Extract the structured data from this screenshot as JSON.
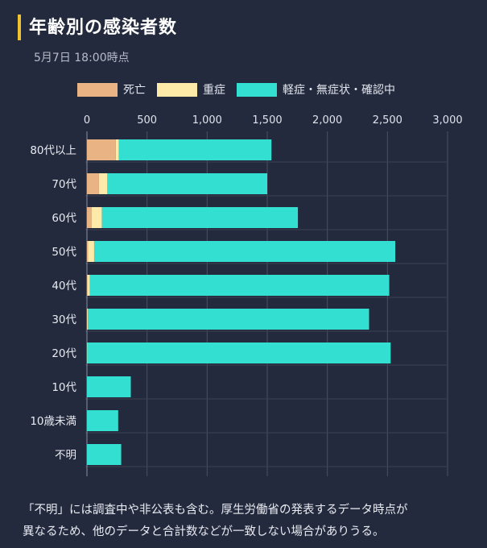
{
  "header": {
    "title": "年齢別の感染者数",
    "timestamp": "5月7日 18:00時点"
  },
  "colors": {
    "death": "#e9b384",
    "severe": "#fde9a8",
    "mild": "#33dfd0",
    "accent": "#f2c230"
  },
  "legend": [
    {
      "key": "death",
      "label": "死亡",
      "color": "#e9b384"
    },
    {
      "key": "severe",
      "label": "重症",
      "color": "#fde9a8"
    },
    {
      "key": "mild",
      "label": "軽症・無症状・確認中",
      "color": "#33dfd0"
    }
  ],
  "chart_data": {
    "type": "bar",
    "orientation": "horizontal",
    "stacked": true,
    "categories": [
      "80代以上",
      "70代",
      "60代",
      "50代",
      "40代",
      "30代",
      "20代",
      "10代",
      "10歳未満",
      "不明"
    ],
    "series": [
      {
        "name": "死亡",
        "values": [
          240,
          100,
          40,
          10,
          5,
          2,
          0,
          0,
          0,
          0
        ]
      },
      {
        "name": "重症",
        "values": [
          25,
          70,
          85,
          50,
          20,
          5,
          2,
          0,
          0,
          0
        ]
      },
      {
        "name": "軽症・無症状・確認中",
        "values": [
          1270,
          1330,
          1630,
          2505,
          2490,
          2340,
          2525,
          365,
          260,
          285
        ]
      }
    ],
    "xlim": [
      0,
      3000
    ],
    "xticks": [
      0,
      500,
      1000,
      1500,
      2000,
      2500,
      3000
    ],
    "xtick_labels": [
      "0",
      "500",
      "1,000",
      "1,500",
      "2,000",
      "2,500",
      "3,000"
    ],
    "grid": true,
    "legend_position": "top"
  },
  "footnote": {
    "line1": "「不明」には調査中や非公表も含む。厚生労働省の発表するデータ時点が",
    "line2": "異なるため、他のデータと合計数などが一致しない場合がありうる。"
  }
}
